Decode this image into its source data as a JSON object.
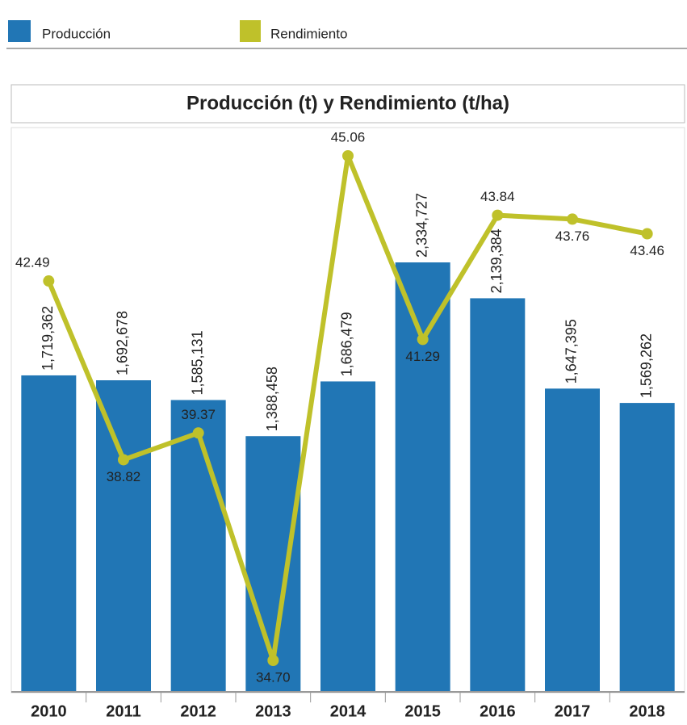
{
  "chart_data": {
    "type": "bar-line",
    "title": "Producción (t) y Rendimiento (t/ha)",
    "categories": [
      "2010",
      "2011",
      "2012",
      "2013",
      "2014",
      "2015",
      "2016",
      "2017",
      "2018"
    ],
    "series": [
      {
        "name": "Producción",
        "color": "#2176b5",
        "values": [
          1719362,
          1692678,
          1585131,
          1388458,
          1686479,
          2334727,
          2139384,
          1647395,
          1569262
        ],
        "value_labels": [
          "1,719,362",
          "1,692,678",
          "1,585,131",
          "1,388,458",
          "1,686,479",
          "2,334,727",
          "2,139,384",
          "1,647,395",
          "1,569,262"
        ]
      },
      {
        "name": "Rendimiento",
        "color": "#bfc12a",
        "axis": "y2",
        "values": [
          42.49,
          38.82,
          39.37,
          34.7,
          45.06,
          41.29,
          43.84,
          43.76,
          43.46
        ],
        "value_labels": [
          "42.49",
          "38.82",
          "39.37",
          "34.70",
          "45.06",
          "41.29",
          "43.84",
          "43.76",
          "43.46"
        ]
      }
    ]
  }
}
